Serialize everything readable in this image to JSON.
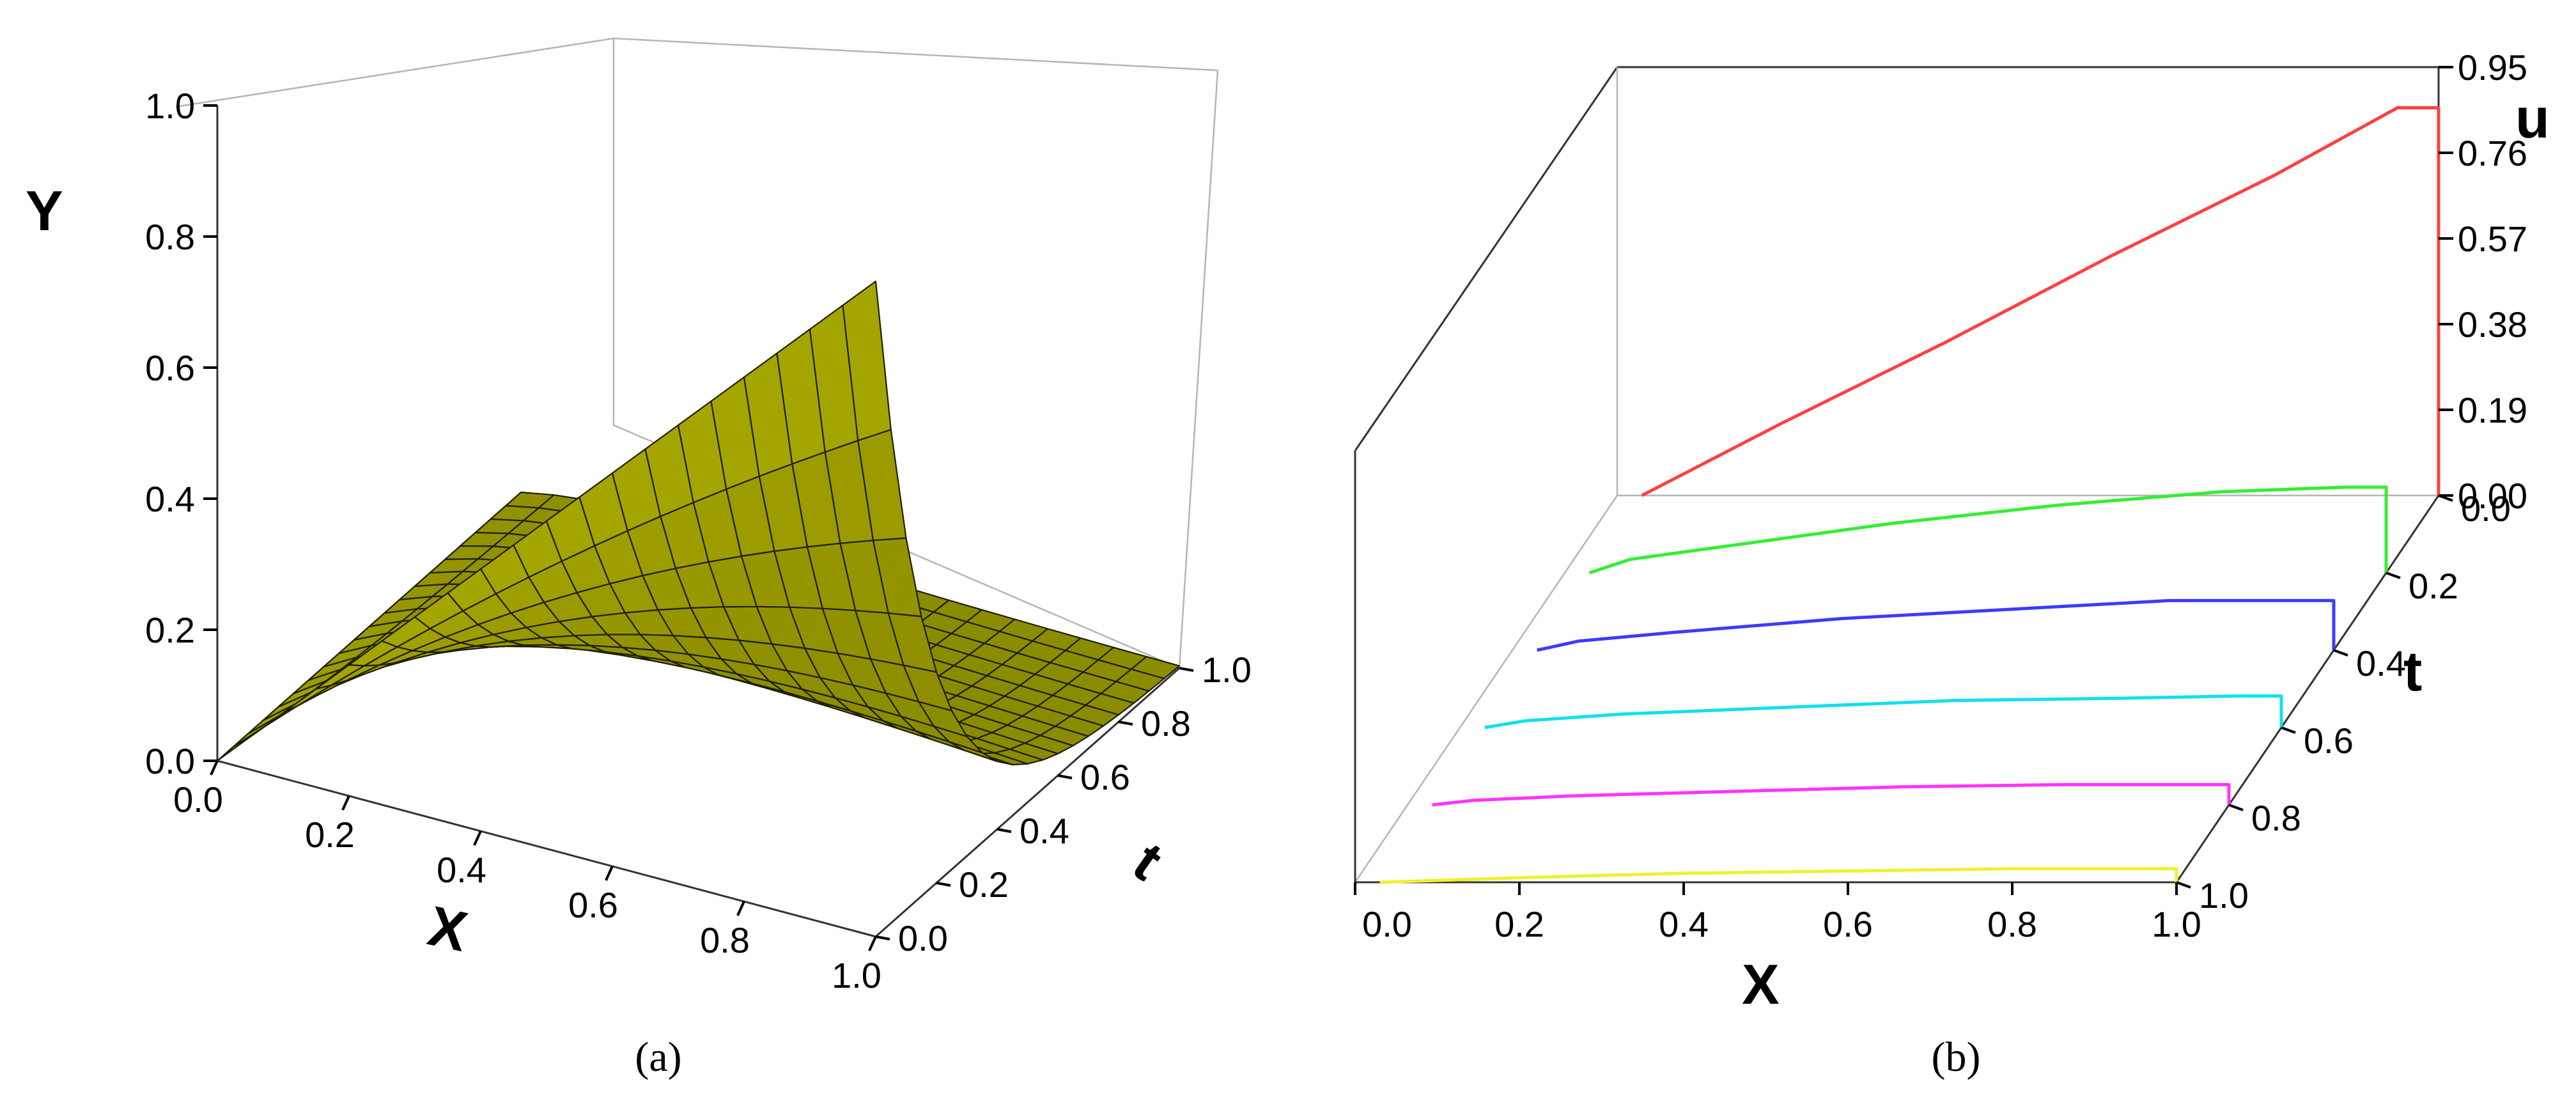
{
  "panels": [
    {
      "caption": "(a)",
      "ylabel": "Y",
      "xlabel": "X",
      "tlabel": "t",
      "y_ticks": [
        "0.0",
        "0.2",
        "0.4",
        "0.6",
        "0.8",
        "1.0"
      ],
      "x_ticks": [
        "0.0",
        "0.2",
        "0.4",
        "0.6",
        "0.8",
        "1.0"
      ],
      "t_ticks": [
        "0.0",
        "0.2",
        "0.4",
        "0.6",
        "0.8",
        "1.0"
      ]
    },
    {
      "caption": "(b)",
      "ylabel": "u",
      "xlabel": "X",
      "tlabel": "t",
      "u_ticks": [
        "0.00",
        "0.19",
        "0.38",
        "0.57",
        "0.76",
        "0.95"
      ],
      "x_ticks": [
        "0.0",
        "0.2",
        "0.4",
        "0.6",
        "0.8",
        "1.0"
      ],
      "t_ticks": [
        "0.0",
        "0.2",
        "0.4",
        "0.6",
        "0.8",
        "1.0"
      ]
    }
  ],
  "chart_data": [
    {
      "type": "surface",
      "xlim": [
        0,
        1
      ],
      "tlim": [
        0,
        1
      ],
      "ylim": [
        0,
        1
      ],
      "surface_color": "#a3a300",
      "grid": "20x20",
      "x": [
        0.0,
        0.05,
        0.1,
        0.15,
        0.2,
        0.25,
        0.3,
        0.35,
        0.4,
        0.45,
        0.5,
        0.55,
        0.6,
        0.65,
        0.7,
        0.75,
        0.8,
        0.85,
        0.9,
        0.95,
        1.0
      ],
      "t": [
        0.0,
        0.05,
        0.1,
        0.15,
        0.2,
        0.25,
        0.3,
        0.35,
        0.4,
        0.45,
        0.5,
        0.55,
        0.6,
        0.65,
        0.7,
        0.75,
        0.8,
        0.85,
        0.9,
        0.95,
        1.0
      ],
      "boundary_samples": [
        {
          "x": 0.0,
          "t": 0.0,
          "y": 0.0
        },
        {
          "x": 1.0,
          "t": 0.0,
          "y": 0.9
        },
        {
          "x": 1.0,
          "t": 0.5,
          "y": 0.12
        },
        {
          "x": 1.0,
          "t": 1.0,
          "y": 0.02
        },
        {
          "x": 0.5,
          "t": 1.0,
          "y": 0.02
        }
      ]
    },
    {
      "type": "line",
      "xlim": [
        0,
        1
      ],
      "ulim": [
        0,
        0.95
      ],
      "tlim": [
        0,
        1
      ],
      "series": [
        {
          "t": 0.0,
          "color": "#ff4040",
          "x": [
            0.03,
            0.2,
            0.4,
            0.6,
            0.8,
            0.95,
            1.0
          ],
          "u": [
            0.0,
            0.16,
            0.34,
            0.53,
            0.71,
            0.86,
            0.86
          ]
        },
        {
          "t": 0.2,
          "color": "#33ee33",
          "x": [
            0.03,
            0.08,
            0.2,
            0.4,
            0.6,
            0.8,
            0.95,
            1.0
          ],
          "u": [
            0.0,
            0.03,
            0.06,
            0.11,
            0.15,
            0.18,
            0.19,
            0.19
          ]
        },
        {
          "t": 0.4,
          "color": "#3b3bff",
          "x": [
            0.03,
            0.08,
            0.2,
            0.4,
            0.6,
            0.8,
            0.95,
            1.0
          ],
          "u": [
            0.0,
            0.02,
            0.04,
            0.07,
            0.09,
            0.11,
            0.11,
            0.11
          ]
        },
        {
          "t": 0.6,
          "color": "#11e0ee",
          "x": [
            0.03,
            0.08,
            0.2,
            0.4,
            0.6,
            0.8,
            0.95,
            1.0
          ],
          "u": [
            0.0,
            0.015,
            0.03,
            0.045,
            0.06,
            0.065,
            0.07,
            0.07
          ]
        },
        {
          "t": 0.8,
          "color": "#ff33ff",
          "x": [
            0.03,
            0.08,
            0.2,
            0.4,
            0.6,
            0.8,
            0.95,
            1.0
          ],
          "u": [
            0.0,
            0.01,
            0.02,
            0.03,
            0.04,
            0.045,
            0.045,
            0.045
          ]
        },
        {
          "t": 1.0,
          "color": "#f0f030",
          "x": [
            0.03,
            0.2,
            0.4,
            0.6,
            0.8,
            0.95,
            1.0
          ],
          "u": [
            0.0,
            0.01,
            0.02,
            0.025,
            0.03,
            0.03,
            0.03
          ]
        }
      ]
    }
  ]
}
